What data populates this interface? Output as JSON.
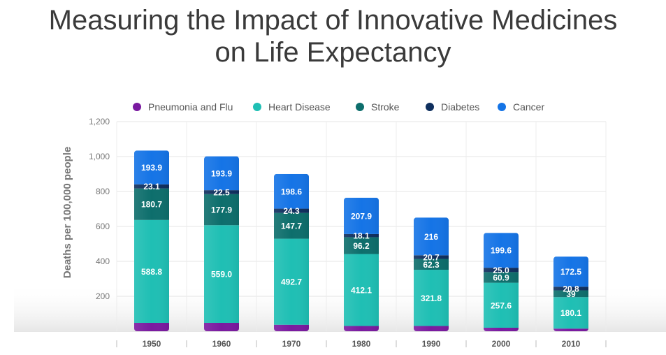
{
  "title_line1": "Measuring the Impact of Innovative Medicines",
  "title_line2": "on Life Expectancy",
  "chart_data": {
    "type": "bar",
    "stacked": true,
    "categories": [
      "1950",
      "1960",
      "1970",
      "1980",
      "1990",
      "2000",
      "2010"
    ],
    "ylabel": "Deaths per 100,000 people",
    "xlabel": "",
    "ylim": [
      0,
      1200
    ],
    "yticks": [
      "200",
      "400",
      "600",
      "800",
      "1,000",
      "1,200"
    ],
    "grid": true,
    "legend_position": "top",
    "series": [
      {
        "name": "Pneumonia and Flu",
        "color": "#7a1aa0",
        "values": [
          48,
          48,
          37,
          30,
          30,
          20,
          15
        ],
        "labels": [
          "",
          "",
          "",
          "",
          "",
          "",
          ""
        ]
      },
      {
        "name": "Heart Disease",
        "color": "#1fbfb4",
        "values": [
          588.8,
          559.0,
          492.7,
          412.1,
          321.8,
          257.6,
          180.1
        ],
        "labels": [
          "588.8",
          "559.0",
          "492.7",
          "412.1",
          "321.8",
          "257.6",
          "180.1"
        ]
      },
      {
        "name": "Stroke",
        "color": "#0d6e6c",
        "values": [
          180.7,
          177.9,
          147.7,
          96.2,
          62.3,
          60.9,
          39
        ],
        "labels": [
          "180.7",
          "177.9",
          "147.7",
          "96.2",
          "62.3",
          "60.9",
          "39"
        ]
      },
      {
        "name": "Diabetes",
        "color": "#0f2f5e",
        "values": [
          23.1,
          22.5,
          24.3,
          18.1,
          20.7,
          25.0,
          20.8
        ],
        "labels": [
          "23.1",
          "22.5",
          "24.3",
          "18.1",
          "20.7",
          "25.0",
          "20.8"
        ]
      },
      {
        "name": "Cancer",
        "color": "#1574e6",
        "values": [
          193.9,
          193.9,
          198.6,
          207.9,
          216,
          199.6,
          172.5
        ],
        "labels": [
          "193.9",
          "193.9",
          "198.6",
          "207.9",
          "216",
          "199.6",
          "172.5"
        ]
      }
    ]
  }
}
